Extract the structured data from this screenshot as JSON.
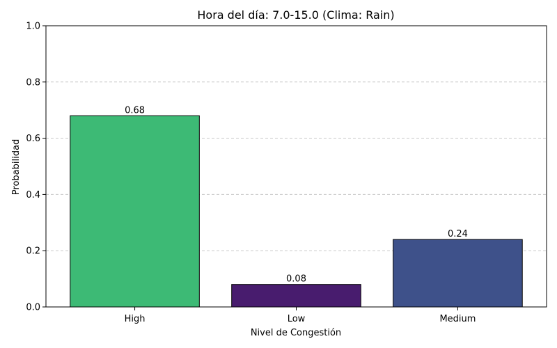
{
  "chart_data": {
    "type": "bar",
    "title": "Hora del día: 7.0-15.0 (Clima: Rain)",
    "xlabel": "Nivel de Congestión",
    "ylabel": "Probabilidad",
    "categories": [
      "High",
      "Low",
      "Medium"
    ],
    "values": [
      0.68,
      0.08,
      0.24
    ],
    "value_labels": [
      "0.68",
      "0.08",
      "0.24"
    ],
    "bar_colors": [
      "#3dba75",
      "#481c6e",
      "#3e518a"
    ],
    "ylim": [
      0,
      1.0
    ],
    "yticks": [
      0.0,
      0.2,
      0.4,
      0.6,
      0.8,
      1.0
    ],
    "ytick_labels": [
      "0.0",
      "0.2",
      "0.4",
      "0.6",
      "0.8",
      "1.0"
    ],
    "grid": "y-dashed",
    "legend": "none"
  }
}
